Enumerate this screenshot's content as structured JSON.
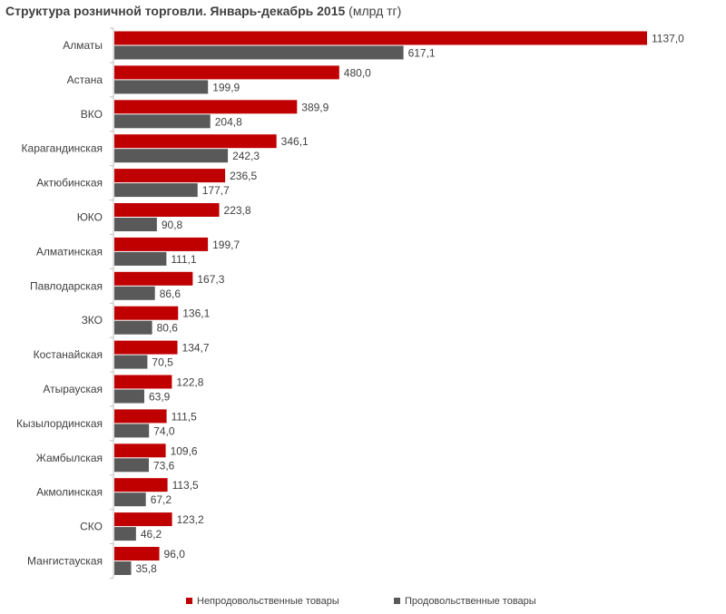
{
  "chart_data": {
    "type": "bar",
    "orientation": "horizontal",
    "title": "Структура  розничной торговли. Январь-декабрь  2015",
    "title_unit": "(млрд тг)",
    "categories": [
      "Алматы",
      "Астана",
      "ВКО",
      "Карагандинская",
      "Актюбинская",
      "ЮКО",
      "Алматинская",
      "Павлодарская",
      "ЗКО",
      "Костанайская",
      "Атырауская",
      "Кызылординская",
      "Жамбылская",
      "Акмолинская",
      "СКО",
      "Мангистауская"
    ],
    "series": [
      {
        "name": "Непродовольственные товары",
        "color": "#c00000",
        "values": [
          1137.0,
          480.0,
          389.9,
          346.1,
          236.5,
          223.8,
          199.7,
          167.3,
          136.1,
          134.7,
          122.8,
          111.5,
          109.6,
          113.5,
          123.2,
          96.0
        ],
        "labels": [
          "1137,0",
          "480,0",
          "389,9",
          "346,1",
          "236,5",
          "223,8",
          "199,7",
          "167,3",
          "136,1",
          "134,7",
          "122,8",
          "111,5",
          "109,6",
          "113,5",
          "123,2",
          "96,0"
        ]
      },
      {
        "name": "Продовольственные товары",
        "color": "#595959",
        "values": [
          617.1,
          199.9,
          204.8,
          242.3,
          177.7,
          90.8,
          111.1,
          86.6,
          80.6,
          70.5,
          63.9,
          74.0,
          73.6,
          67.2,
          46.2,
          35.8
        ],
        "labels": [
          "617,1",
          "199,9",
          "204,8",
          "242,3",
          "177,7",
          "90,8",
          "111,1",
          "86,6",
          "80,6",
          "70,5",
          "63,9",
          "74,0",
          "73,6",
          "67,2",
          "46,2",
          "35,8"
        ]
      }
    ],
    "xlim": [
      0,
      1137
    ],
    "grid": false,
    "legend_position": "bottom"
  }
}
